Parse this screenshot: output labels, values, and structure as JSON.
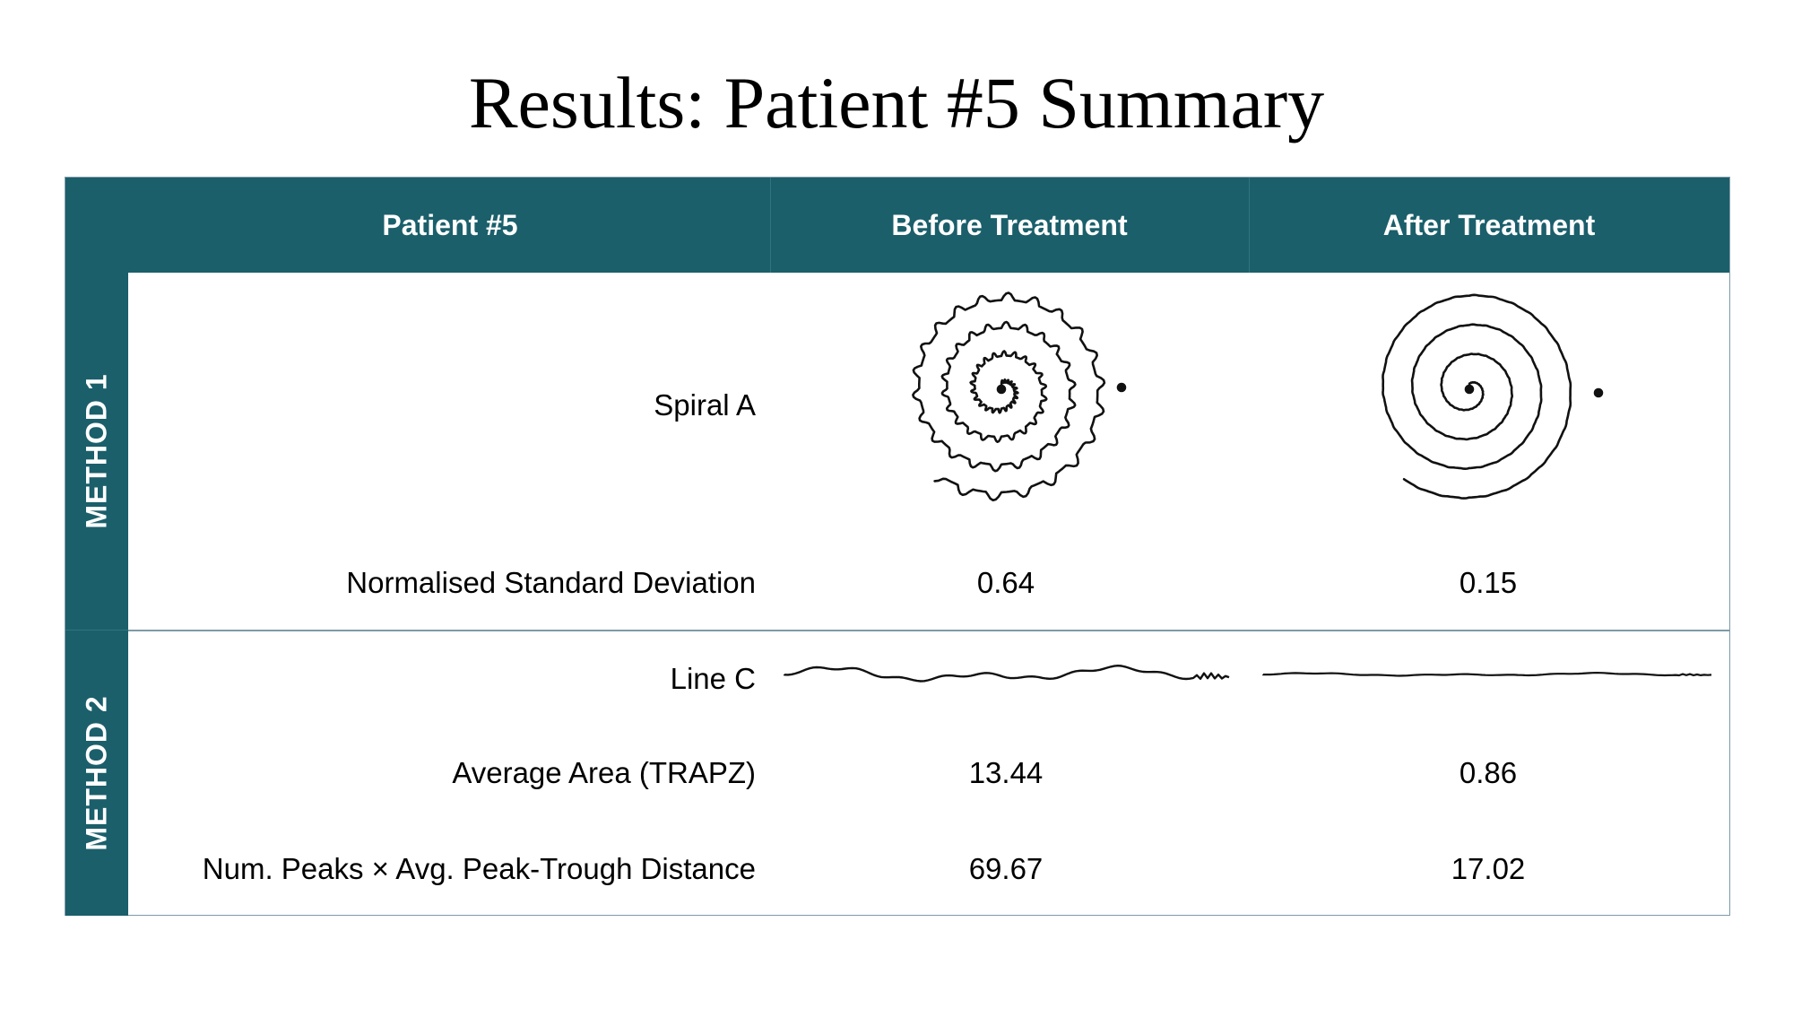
{
  "title": "Results: Patient #5 Summary",
  "table": {
    "headers": {
      "patient": "Patient #5",
      "before": "Before Treatment",
      "after": "After Treatment"
    },
    "header_color": "#1b5f6b",
    "method1": {
      "label": "METHOD 1",
      "spiral_label": "Spiral A",
      "nsd_label": "Normalised Standard Deviation",
      "nsd_before": "0.64",
      "nsd_after": "0.15"
    },
    "method2": {
      "label": "METHOD 2",
      "line_label": "Line C",
      "area_label": "Average Area (TRAPZ)",
      "area_before": "13.44",
      "area_after": "0.86",
      "peaks_label": "Num. Peaks × Avg. Peak-Trough Distance",
      "peaks_before": "69.67",
      "peaks_after": "17.02"
    }
  }
}
